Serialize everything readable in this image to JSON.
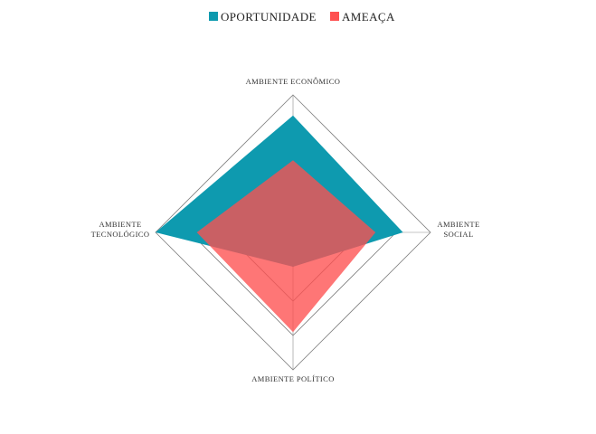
{
  "chart_data": {
    "type": "radar",
    "categories": [
      "AMBIENTE ECONÔMICO",
      "AMBIENTE SOCIAL",
      "AMBIENTE POLÍTICO",
      "AMBIENTE TECNOLÓGICO"
    ],
    "category_lines": [
      [
        "AMBIENTE ECONÔMICO"
      ],
      [
        "AMBIENTE",
        "SOCIAL"
      ],
      [
        "AMBIENTE POLÍTICO"
      ],
      [
        "AMBIENTE",
        "TECNOLÓGICO"
      ]
    ],
    "rmax": 4,
    "grid_levels": 4,
    "series": [
      {
        "name": "OPORTUNIDADE",
        "color": "#0e9aaf",
        "values": [
          3.4,
          3.2,
          1.0,
          4.0
        ]
      },
      {
        "name": "AMEAÇA",
        "color": "#fe5050",
        "values": [
          2.1,
          2.4,
          2.9,
          2.8
        ]
      }
    ],
    "legend_position": "top"
  }
}
